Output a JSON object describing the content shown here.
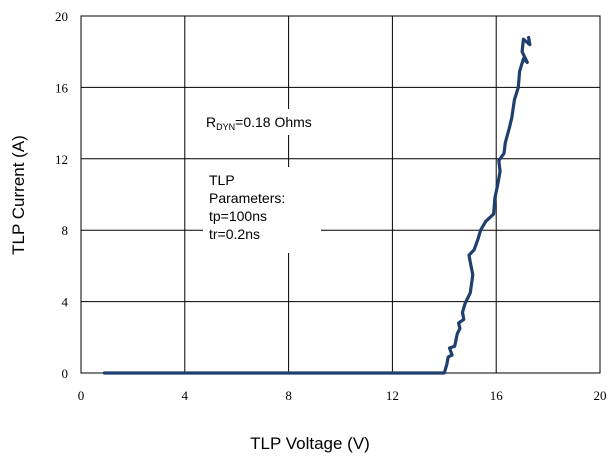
{
  "chart_data": {
    "type": "line",
    "xlabel": "TLP Voltage (V)",
    "ylabel": "TLP Current (A)",
    "xlim": [
      0,
      20
    ],
    "ylim": [
      0,
      20
    ],
    "xticks": [
      0,
      4,
      8,
      12,
      16,
      20
    ],
    "yticks": [
      0,
      4,
      8,
      12,
      16,
      20
    ],
    "grid": true,
    "annotations": [
      {
        "text_main": "R",
        "text_sub": "DYN",
        "text_rest": "=0.18 Ohms"
      },
      {
        "lines": [
          "TLP",
          "Parameters:",
          "tp=100ns",
          "tr=0.2ns"
        ]
      }
    ],
    "series": [
      {
        "color": "#1f3f6e",
        "points": [
          [
            0.9,
            0.0
          ],
          [
            14.0,
            0.0
          ],
          [
            14.1,
            0.5
          ],
          [
            14.15,
            0.9
          ],
          [
            14.3,
            1.0
          ],
          [
            14.2,
            1.4
          ],
          [
            14.4,
            1.5
          ],
          [
            14.5,
            2.2
          ],
          [
            14.6,
            2.5
          ],
          [
            14.55,
            2.8
          ],
          [
            14.75,
            3.0
          ],
          [
            14.7,
            3.4
          ],
          [
            14.8,
            3.9
          ],
          [
            15.0,
            4.5
          ],
          [
            15.1,
            5.5
          ],
          [
            15.0,
            6.2
          ],
          [
            14.95,
            6.6
          ],
          [
            15.15,
            6.9
          ],
          [
            15.3,
            7.5
          ],
          [
            15.4,
            8.0
          ],
          [
            15.6,
            8.5
          ],
          [
            15.9,
            8.9
          ],
          [
            15.95,
            9.8
          ],
          [
            16.05,
            10.5
          ],
          [
            16.15,
            11.3
          ],
          [
            16.1,
            11.9
          ],
          [
            16.3,
            12.3
          ],
          [
            16.35,
            12.9
          ],
          [
            16.5,
            13.7
          ],
          [
            16.6,
            14.3
          ],
          [
            16.7,
            15.3
          ],
          [
            16.85,
            16.0
          ],
          [
            16.9,
            16.9
          ],
          [
            17.05,
            17.6
          ],
          [
            17.2,
            17.4
          ],
          [
            17.0,
            18.0
          ],
          [
            17.05,
            18.7
          ],
          [
            17.3,
            18.4
          ],
          [
            17.25,
            18.8
          ]
        ]
      }
    ]
  }
}
